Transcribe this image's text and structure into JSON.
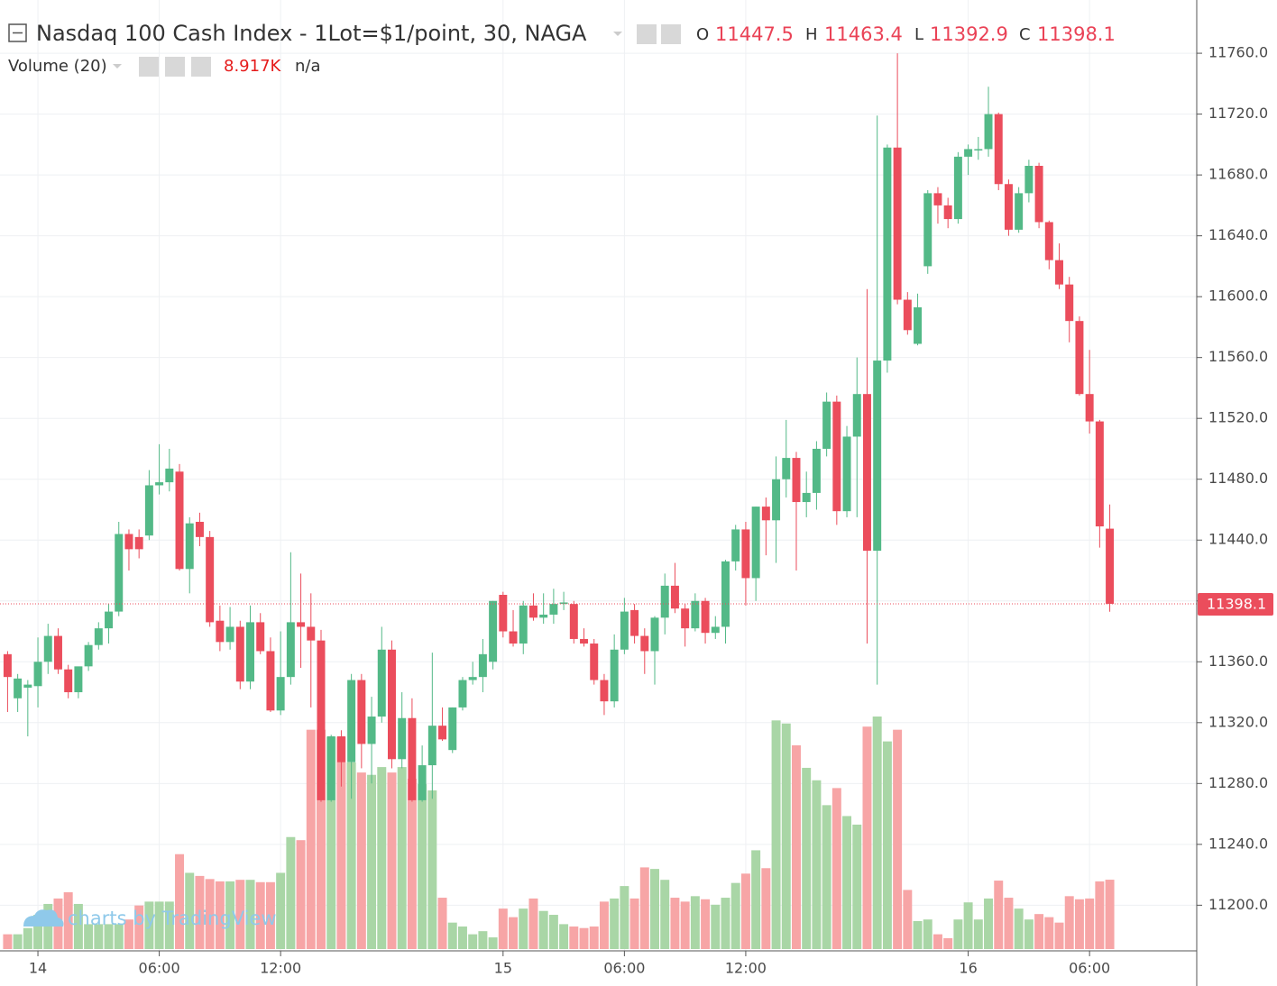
{
  "header": {
    "title": "Nasdaq 100 Cash Index - 1Lot=$1/point, 30, NAGA",
    "ohlc_labels": [
      "O",
      "H",
      "L",
      "C"
    ],
    "volume_label": "Volume (20)",
    "volume_value": "8.917K",
    "volume_ma": "n/a",
    "watermark": "charts by TradingView"
  },
  "chart_data": {
    "type": "candlestick",
    "open": [
      11365,
      11336,
      11343,
      11344,
      11360,
      11377,
      11355,
      11340,
      11357,
      11371,
      11382,
      11393,
      11444,
      11442,
      11443,
      11476,
      11478,
      11485,
      11421,
      11452,
      11442,
      11387,
      11373,
      11383,
      11347,
      11386,
      11367,
      11328,
      11350,
      11386,
      11383,
      11374,
      11269,
      11311,
      11294,
      11348,
      11306,
      11324,
      11368,
      11296,
      11323,
      11269,
      11292,
      11318,
      11302,
      11330,
      11348,
      11350,
      11360,
      11404,
      11380,
      11372,
      11397,
      11389,
      11391,
      11398,
      11398,
      11375,
      11372,
      11348,
      11334,
      11368,
      11394,
      11377,
      11367,
      11389,
      11410,
      11395,
      11382,
      11400,
      11379,
      11383,
      11426,
      11447,
      11415,
      11462,
      11453,
      11480,
      11494,
      11465,
      11471,
      11500,
      11531,
      11459,
      11508,
      11536,
      11433,
      11558,
      11698,
      11598,
      11569,
      11620,
      11668,
      11660,
      11651,
      11692,
      11697,
      11697,
      11720,
      11674,
      11644,
      11668,
      11686,
      11649,
      11624,
      11608,
      11584,
      11536,
      11518,
      11447.5
    ],
    "high": [
      11367,
      11352,
      11348,
      11376,
      11385,
      11382,
      11358,
      11356,
      11373,
      11386,
      11398,
      11452,
      11447,
      11447,
      11486,
      11503,
      11500,
      11490,
      11455,
      11458,
      11446,
      11397,
      11396,
      11387,
      11397,
      11392,
      11376,
      11380,
      11432,
      11418,
      11405,
      11381,
      11312,
      11315,
      11352,
      11352,
      11337,
      11383,
      11374,
      11340,
      11336,
      11305,
      11366,
      11330,
      11330,
      11350,
      11360,
      11375,
      11400,
      11406,
      11394,
      11400,
      11405,
      11405,
      11408,
      11406,
      11400,
      11382,
      11375,
      11352,
      11378,
      11402,
      11398,
      11382,
      11390,
      11418,
      11425,
      11398,
      11405,
      11402,
      11390,
      11427,
      11450,
      11452,
      11462,
      11468,
      11495,
      11519,
      11498,
      11485,
      11505,
      11537,
      11535,
      11515,
      11560,
      11605,
      11719,
      11700,
      11760,
      11603,
      11602,
      11670,
      11672,
      11665,
      11695,
      11700,
      11705,
      11738,
      11721,
      11677,
      11672,
      11690,
      11688,
      11650,
      11635,
      11613,
      11587,
      11565,
      11519,
      11463.4
    ],
    "low": [
      11327,
      11327,
      11311,
      11330,
      11352,
      11352,
      11336,
      11336,
      11354,
      11368,
      11372,
      11390,
      11420,
      11428,
      11440,
      11470,
      11472,
      11420,
      11405,
      11436,
      11383,
      11367,
      11368,
      11342,
      11342,
      11365,
      11327,
      11325,
      11345,
      11356,
      11330,
      11268,
      11268,
      11278,
      11270,
      11290,
      11280,
      11320,
      11290,
      11290,
      11268,
      11268,
      11270,
      11308,
      11300,
      11328,
      11345,
      11340,
      11355,
      11376,
      11370,
      11365,
      11387,
      11385,
      11385,
      11394,
      11372,
      11370,
      11345,
      11325,
      11330,
      11365,
      11372,
      11352,
      11345,
      11378,
      11392,
      11370,
      11380,
      11372,
      11375,
      11372,
      11420,
      11397,
      11400,
      11430,
      11425,
      11468,
      11420,
      11455,
      11460,
      11495,
      11450,
      11455,
      11455,
      11372,
      11345,
      11550,
      11595,
      11575,
      11568,
      11615,
      11648,
      11645,
      11648,
      11680,
      11690,
      11692,
      11670,
      11640,
      11642,
      11662,
      11645,
      11618,
      11605,
      11570,
      11535,
      11510,
      11435,
      11392.9
    ],
    "close": [
      11350,
      11349,
      11345,
      11360,
      11377,
      11355,
      11340,
      11357,
      11371,
      11382,
      11393,
      11444,
      11434,
      11434,
      11476,
      11478,
      11487,
      11421,
      11451,
      11442,
      11386,
      11373,
      11383,
      11347,
      11386,
      11367,
      11328,
      11350,
      11386,
      11383,
      11374,
      11269,
      11311,
      11294,
      11348,
      11306,
      11324,
      11368,
      11296,
      11323,
      11269,
      11292,
      11318,
      11309,
      11330,
      11348,
      11350,
      11365,
      11400,
      11380,
      11372,
      11397,
      11389,
      11391,
      11398,
      11399,
      11375,
      11372,
      11348,
      11334,
      11368,
      11393,
      11377,
      11367,
      11389,
      11410,
      11395,
      11382,
      11400,
      11379,
      11383,
      11426,
      11447,
      11415,
      11462,
      11453,
      11480,
      11494,
      11465,
      11471,
      11500,
      11531,
      11459,
      11508,
      11536,
      11433,
      11558,
      11698,
      11598,
      11578,
      11593,
      11668,
      11660,
      11651,
      11692,
      11697,
      11697,
      11720,
      11674,
      11644,
      11668,
      11686,
      11649,
      11624,
      11608,
      11584,
      11536,
      11518,
      11449,
      11398.1
    ],
    "volume": [
      1.9,
      1.9,
      2.7,
      4.4,
      5.8,
      6.5,
      7.3,
      5.8,
      3.2,
      3.2,
      3.2,
      3.2,
      3.8,
      5.6,
      6.1,
      6.1,
      6.1,
      12.2,
      9.8,
      9.4,
      9.0,
      8.7,
      8.7,
      8.9,
      8.9,
      8.6,
      8.6,
      9.8,
      14.4,
      14.0,
      28.2,
      28.2,
      27.3,
      27.3,
      24.0,
      22.7,
      22.4,
      23.4,
      22.7,
      23.4,
      21.9,
      21.2,
      20.4,
      6.6,
      3.4,
      2.9,
      1.9,
      2.3,
      1.5,
      5.2,
      4.1,
      5.2,
      6.5,
      4.9,
      4.4,
      3.2,
      2.9,
      2.7,
      2.9,
      6.1,
      6.5,
      8.1,
      6.5,
      10.5,
      10.3,
      8.9,
      6.6,
      6.1,
      6.8,
      6.4,
      5.7,
      6.6,
      8.5,
      9.7,
      12.7,
      10.4,
      29.4,
      29.0,
      26.2,
      23.3,
      21.7,
      18.5,
      20.7,
      17.1,
      16.0,
      28.6,
      29.9,
      26.7,
      28.2,
      7.6,
      3.6,
      3.8,
      1.9,
      1.4,
      3.8,
      6.0,
      3.8,
      6.5,
      8.8,
      6.6,
      5.2,
      3.8,
      4.5,
      4.1,
      3.4,
      6.8,
      6.4,
      6.5,
      8.7,
      8.917
    ],
    "xlim": [
      -0.75,
      117.6
    ],
    "xticks": [
      {
        "value": 3,
        "label": "14"
      },
      {
        "value": 15,
        "label": "06:00"
      },
      {
        "value": 27,
        "label": "12:00"
      },
      {
        "value": 49,
        "label": "15"
      },
      {
        "value": 61,
        "label": "06:00"
      },
      {
        "value": 73,
        "label": "12:00"
      },
      {
        "value": 95,
        "label": "16"
      },
      {
        "value": 107,
        "label": "06:00"
      }
    ],
    "ylim": [
      11170,
      11795
    ],
    "yticks": [
      {
        "value": 11200,
        "label": "11200.0"
      },
      {
        "value": 11240,
        "label": "11240.0"
      },
      {
        "value": 11280,
        "label": "11280.0"
      },
      {
        "value": 11320,
        "label": "11320.0"
      },
      {
        "value": 11360,
        "label": "11360.0"
      },
      {
        "value": 11400,
        "label": "11400.0"
      },
      {
        "value": 11440,
        "label": "11440.0"
      },
      {
        "value": 11480,
        "label": "11480.0"
      },
      {
        "value": 11520,
        "label": "11520.0"
      },
      {
        "value": 11560,
        "label": "11560.0"
      },
      {
        "value": 11600,
        "label": "11600.0"
      },
      {
        "value": 11640,
        "label": "11640.0"
      },
      {
        "value": 11680,
        "label": "11680.0"
      },
      {
        "value": 11720,
        "label": "11720.0"
      },
      {
        "value": 11760,
        "label": "11760.0"
      }
    ],
    "grid": true,
    "up_color": "#53b987",
    "down_color": "#eb4d5c",
    "volume_up_color": "#a9d6a6",
    "volume_down_color": "#f7a5a6"
  }
}
